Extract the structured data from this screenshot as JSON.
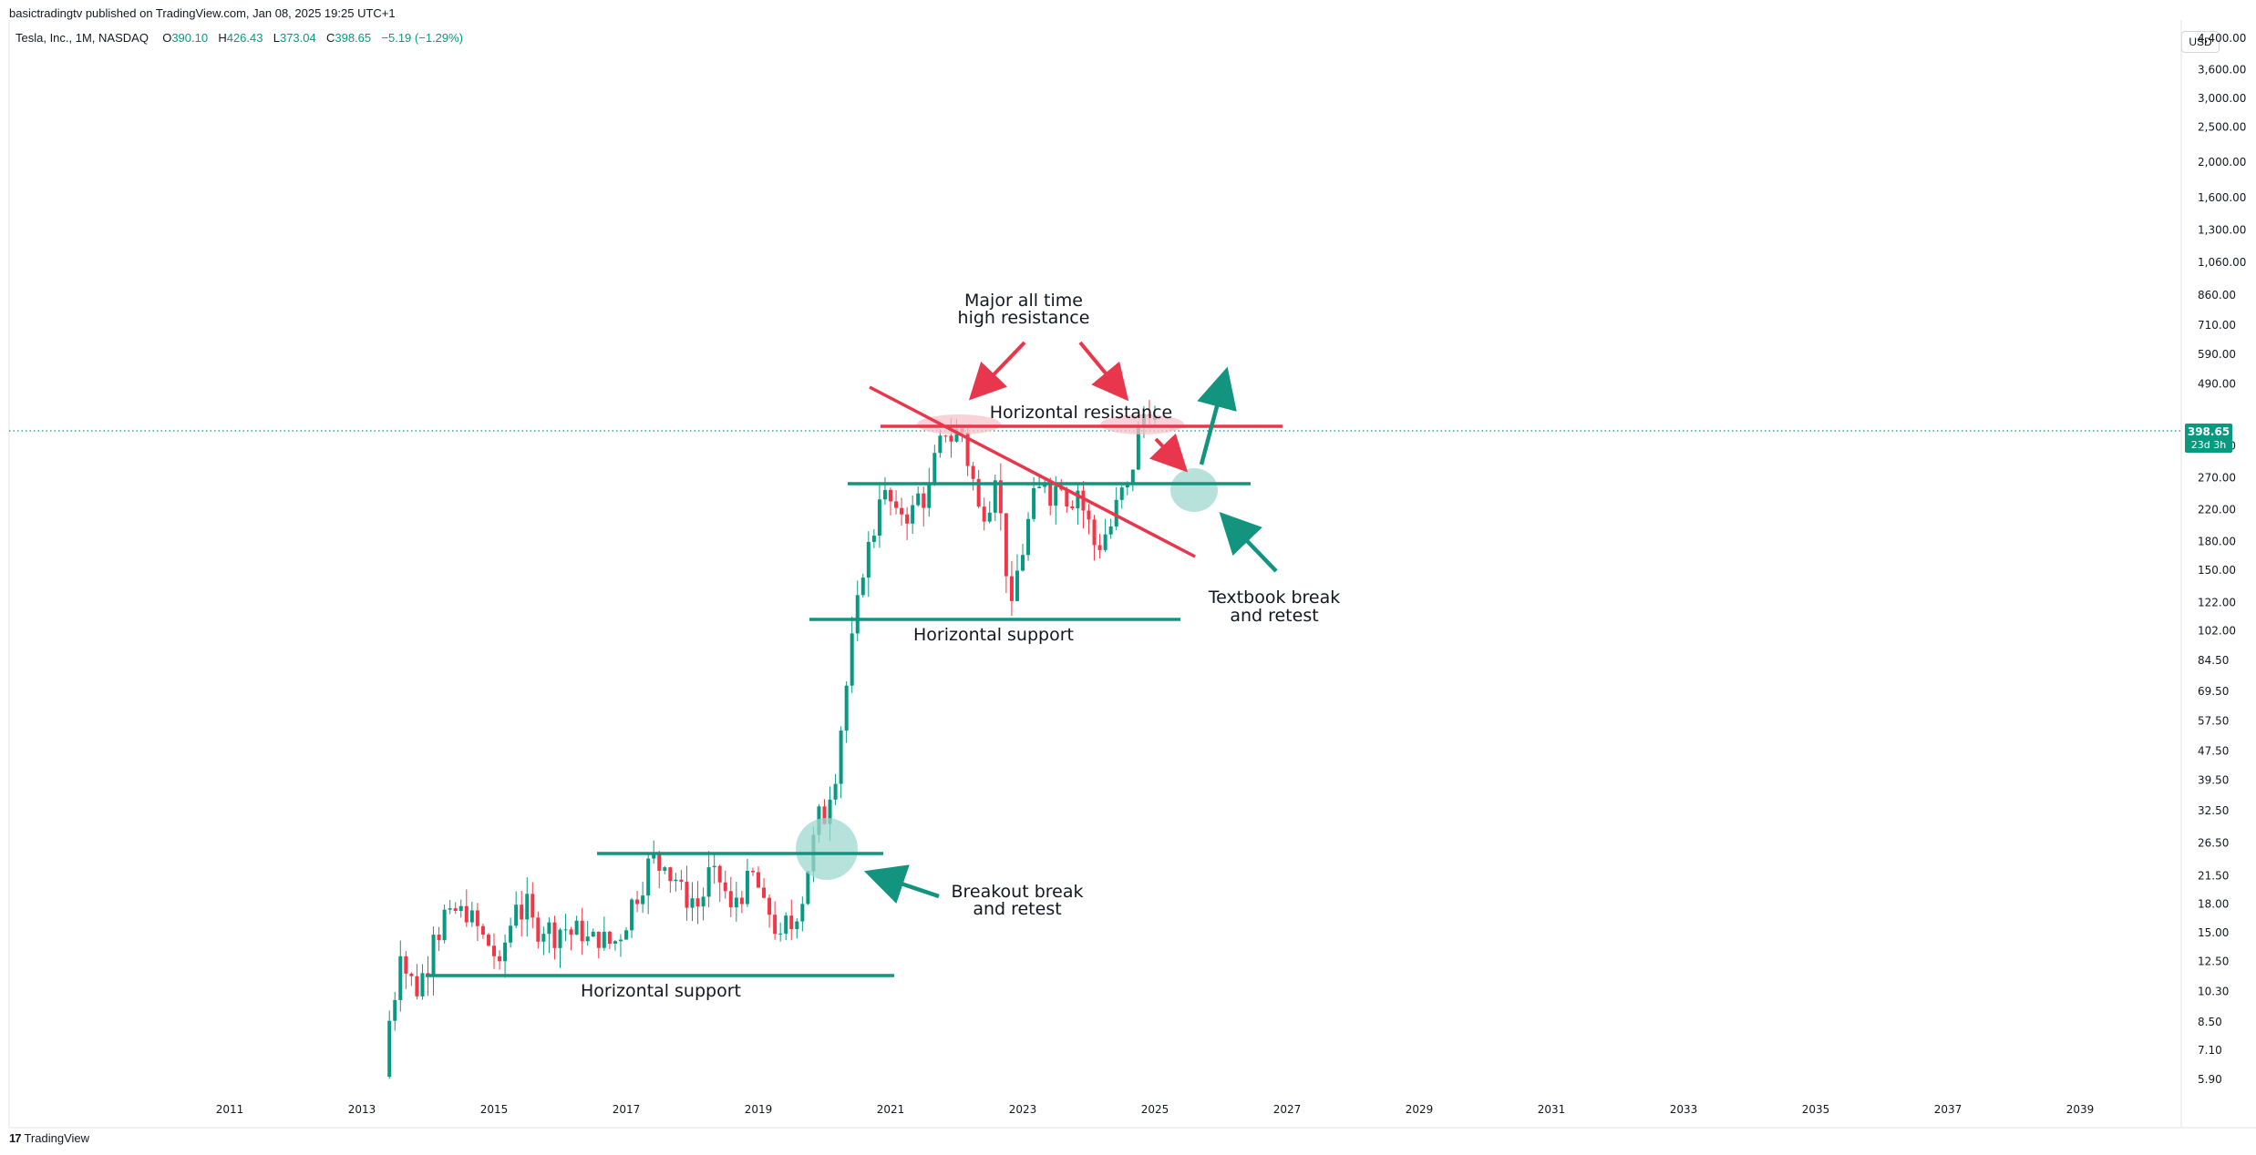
{
  "header": {
    "published": "basictradingtv published on TradingView.com, Jan 08, 2025 19:25 UTC+1"
  },
  "legend": {
    "symbol": "Tesla, Inc., 1M, NASDAQ",
    "o_label": "O",
    "o_value": "390.10",
    "h_label": "H",
    "h_value": "426.43",
    "l_label": "L",
    "l_value": "373.04",
    "c_label": "C",
    "c_value": "398.65",
    "change": "−5.19 (−1.29%)"
  },
  "currency_button": "USD",
  "footer": {
    "brand": "TradingView",
    "logo_glyph": "17"
  },
  "colors": {
    "up": "#089981",
    "down": "#f23645",
    "support": "#13947f",
    "resistance": "#e8364c",
    "ellipse_green": "#9fd8cf",
    "ellipse_red": "#f7c2c9"
  },
  "chart_data": {
    "type": "candlestick",
    "scale": "log",
    "x_ticks": [
      "2011",
      "2013",
      "2015",
      "2017",
      "2019",
      "2021",
      "2023",
      "2025",
      "2027",
      "2029",
      "2031",
      "2033",
      "2035",
      "2037",
      "2039"
    ],
    "y_ticks": [
      "4,400.00",
      "3,600.00",
      "3,000.00",
      "2,500.00",
      "2,000.00",
      "1,600.00",
      "1,300.00",
      "1,060.00",
      "860.00",
      "710.00",
      "590.00",
      "490.00",
      "330.00",
      "270.00",
      "220.00",
      "180.00",
      "150.00",
      "122.00",
      "102.00",
      "84.50",
      "69.50",
      "57.50",
      "47.50",
      "39.50",
      "32.50",
      "26.50",
      "21.50",
      "18.00",
      "15.00",
      "12.50",
      "10.30",
      "8.50",
      "7.10",
      "5.90"
    ],
    "last_price": {
      "value": "398.65",
      "countdown": "23d 3h"
    },
    "approx_quarterly_closes": [
      {
        "t": "2013-06",
        "o": 6.0,
        "c": 7.0
      },
      {
        "t": "2013-09",
        "o": 7.0,
        "c": 12.9
      },
      {
        "t": "2013-12",
        "o": 12.9,
        "c": 10.0
      },
      {
        "t": "2014-03",
        "o": 10.0,
        "c": 14.8
      },
      {
        "t": "2014-06",
        "o": 14.8,
        "c": 17.5
      },
      {
        "t": "2014-09",
        "o": 17.5,
        "c": 16.0
      },
      {
        "t": "2014-12",
        "o": 16.0,
        "c": 14.8
      },
      {
        "t": "2015-03",
        "o": 14.8,
        "c": 12.5
      },
      {
        "t": "2015-06",
        "o": 12.5,
        "c": 17.9
      },
      {
        "t": "2015-09",
        "o": 17.9,
        "c": 16.5
      },
      {
        "t": "2015-12",
        "o": 16.5,
        "c": 16.0
      },
      {
        "t": "2016-03",
        "o": 16.0,
        "c": 15.3
      },
      {
        "t": "2016-06",
        "o": 15.3,
        "c": 14.2
      },
      {
        "t": "2016-09",
        "o": 14.2,
        "c": 13.6
      },
      {
        "t": "2016-12",
        "o": 13.6,
        "c": 14.2
      },
      {
        "t": "2017-03",
        "o": 14.2,
        "c": 18.5
      },
      {
        "t": "2017-06",
        "o": 18.5,
        "c": 24.0
      },
      {
        "t": "2017-09",
        "o": 24.0,
        "c": 22.7
      },
      {
        "t": "2017-12",
        "o": 22.7,
        "c": 20.7
      },
      {
        "t": "2018-03",
        "o": 20.7,
        "c": 17.7
      },
      {
        "t": "2018-06",
        "o": 17.7,
        "c": 22.9
      },
      {
        "t": "2018-09",
        "o": 22.9,
        "c": 17.6
      },
      {
        "t": "2018-12",
        "o": 17.6,
        "c": 22.2
      },
      {
        "t": "2019-03",
        "o": 22.2,
        "c": 18.7
      },
      {
        "t": "2019-06",
        "o": 18.7,
        "c": 14.9
      },
      {
        "t": "2019-09",
        "o": 14.9,
        "c": 16.1
      },
      {
        "t": "2019-12",
        "o": 16.1,
        "c": 27.9
      },
      {
        "t": "2020-03",
        "o": 27.9,
        "c": 34.9
      },
      {
        "t": "2020-06",
        "o": 34.9,
        "c": 72.0
      },
      {
        "t": "2020-09",
        "o": 72.0,
        "c": 143.0
      },
      {
        "t": "2020-12",
        "o": 143.0,
        "c": 235.0
      },
      {
        "t": "2021-03",
        "o": 235.0,
        "c": 222.6
      },
      {
        "t": "2021-06",
        "o": 222.6,
        "c": 226.6
      },
      {
        "t": "2021-09",
        "o": 226.6,
        "c": 258.5
      },
      {
        "t": "2021-12",
        "o": 258.5,
        "c": 352.3
      },
      {
        "t": "2022-03",
        "o": 352.3,
        "c": 359.2
      },
      {
        "t": "2022-06",
        "o": 359.2,
        "c": 224.5
      },
      {
        "t": "2022-09",
        "o": 224.5,
        "c": 265.3
      },
      {
        "t": "2022-12",
        "o": 265.3,
        "c": 123.2
      },
      {
        "t": "2023-03",
        "o": 123.2,
        "c": 207.5
      },
      {
        "t": "2023-06",
        "o": 207.5,
        "c": 261.8
      },
      {
        "t": "2023-09",
        "o": 261.8,
        "c": 250.2
      },
      {
        "t": "2023-12",
        "o": 250.2,
        "c": 248.5
      },
      {
        "t": "2024-03",
        "o": 248.5,
        "c": 175.8
      },
      {
        "t": "2024-06",
        "o": 175.8,
        "c": 197.9
      },
      {
        "t": "2024-09",
        "o": 197.9,
        "c": 261.6
      },
      {
        "t": "2024-12",
        "o": 261.6,
        "c": 403.8
      },
      {
        "t": "2025-01",
        "o": 390.1,
        "c": 398.65,
        "h": 426.43,
        "l": 373.04
      }
    ],
    "levels": [
      {
        "type": "support",
        "value": 12.0,
        "from": "2014-01",
        "to": "2021-01"
      },
      {
        "type": "support",
        "value": 26.0,
        "from": "2016-09",
        "to": "2021-01"
      },
      {
        "type": "support",
        "value": 120.0,
        "from": "2020-09",
        "to": "2025-06"
      },
      {
        "type": "support",
        "value": 290.0,
        "from": "2020-10",
        "to": "2026-09"
      },
      {
        "type": "resistance",
        "value": 405.0,
        "from": "2021-01",
        "to": "2027-01"
      }
    ],
    "annotations": [
      "Major all time",
      "high resistance",
      "Horizontal resistance",
      "Textbook break",
      "and retest",
      "Horizontal support",
      "Breakout break",
      "and retest",
      "Horizontal support"
    ]
  }
}
